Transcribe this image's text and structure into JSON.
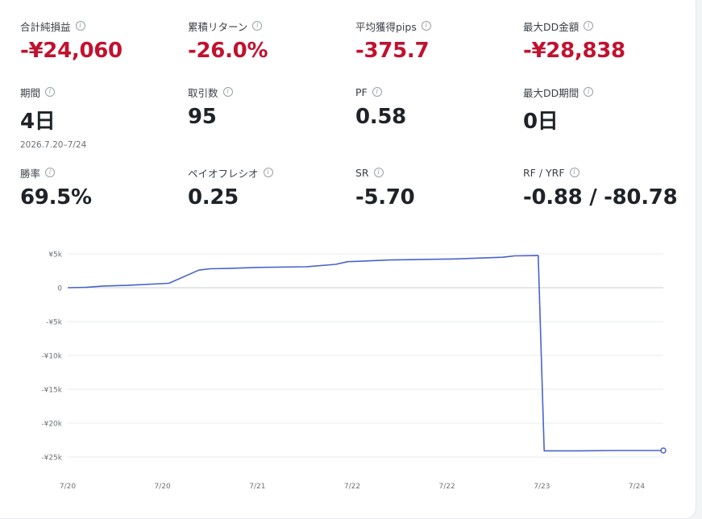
{
  "metrics": [
    {
      "label": "合計純損益",
      "value": "-¥24,060",
      "negative": true
    },
    {
      "label": "累積リターン",
      "value": "-26.0%",
      "negative": true
    },
    {
      "label": "平均獲得pips",
      "value": "-375.7",
      "negative": true
    },
    {
      "label": "最大DD金額",
      "value": "-¥28,838",
      "negative": true
    },
    {
      "label": "期間",
      "value": "4日",
      "sub": "2026.7.20–7/24"
    },
    {
      "label": "取引数",
      "value": "95"
    },
    {
      "label": "PF",
      "value": "0.58"
    },
    {
      "label": "最大DD期間",
      "value": "0日"
    },
    {
      "label": "勝率",
      "value": "69.5%"
    },
    {
      "label": "ペイオフレシオ",
      "value": "0.25"
    },
    {
      "label": "SR",
      "value": "-5.70"
    },
    {
      "label": "RF / YRF",
      "value": "-0.88 / -80.78"
    }
  ],
  "info_icon": "info-icon",
  "colors": {
    "negative": "#c1122f",
    "line": "#4a63c9",
    "grid": "#e9ebee"
  },
  "chart_data": {
    "type": "line",
    "y_tick_labels": [
      "¥5k",
      "0",
      "-¥5k",
      "-¥10k",
      "-¥15k",
      "-¥20k",
      "-¥25k"
    ],
    "y_ticks": [
      5000,
      0,
      -5000,
      -10000,
      -15000,
      -20000,
      -25000
    ],
    "ylim": [
      -25000,
      5000
    ],
    "x_tick_labels": [
      "7/20",
      "7/20",
      "7/21",
      "7/22",
      "7/22",
      "7/23",
      "7/24"
    ],
    "series": [
      {
        "x": [
          0,
          3,
          6,
          10,
          17,
          22,
          24,
          27,
          32,
          40,
          45,
          47,
          49,
          54,
          65,
          73,
          75,
          79,
          80,
          86,
          92,
          100
        ],
        "y": [
          0,
          50,
          250,
          350,
          650,
          2600,
          2800,
          2850,
          3000,
          3100,
          3450,
          3850,
          3900,
          4100,
          4250,
          4500,
          4700,
          4750,
          -24100,
          -24100,
          -24050,
          -24050
        ]
      }
    ],
    "x_domain": [
      0,
      100
    ]
  }
}
